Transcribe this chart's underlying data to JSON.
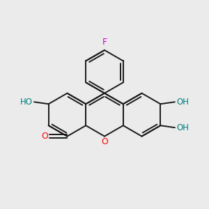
{
  "bg_color": "#ebebeb",
  "bond_color": "#1a1a1a",
  "bond_width": 1.4,
  "O_color": "#ff0000",
  "F_color": "#cc00cc",
  "OH_color": "#008080",
  "fig_size": [
    3.0,
    3.0
  ],
  "dpi": 100,
  "xlim": [
    0,
    10
  ],
  "ylim": [
    0,
    10
  ]
}
